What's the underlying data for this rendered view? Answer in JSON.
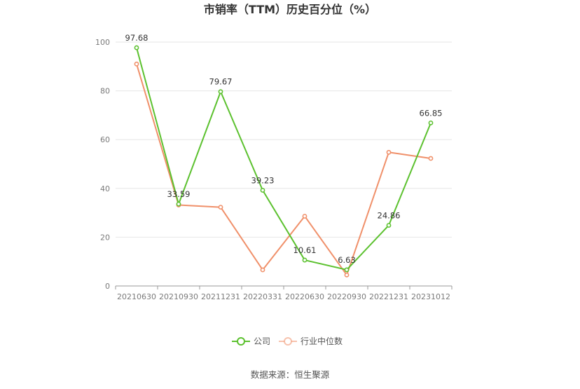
{
  "chart_data": {
    "type": "line",
    "title": "市销率（TTM）历史百分位（%）",
    "categories": [
      "20210630",
      "20210930",
      "20211231",
      "20220331",
      "20220630",
      "20220930",
      "20221231",
      "20231012"
    ],
    "ylim": [
      0,
      100
    ],
    "yticks": [
      0,
      20,
      40,
      60,
      80,
      100
    ],
    "grid": true,
    "legend_position": "bottom",
    "series": [
      {
        "name": "公司",
        "color": "#5cc12f",
        "values": [
          97.68,
          33.59,
          79.67,
          39.23,
          10.61,
          6.63,
          24.86,
          66.85
        ],
        "labels": [
          "97.68",
          "33.59",
          "79.67",
          "39.23",
          "10.61",
          "6.63",
          "24.86",
          "66.85"
        ]
      },
      {
        "name": "行业中位数",
        "color": "#f0906a",
        "values": [
          91.0,
          33.2,
          32.3,
          6.6,
          28.6,
          4.5,
          54.8,
          52.3
        ]
      }
    ]
  },
  "source": "数据来源：恒生聚源"
}
